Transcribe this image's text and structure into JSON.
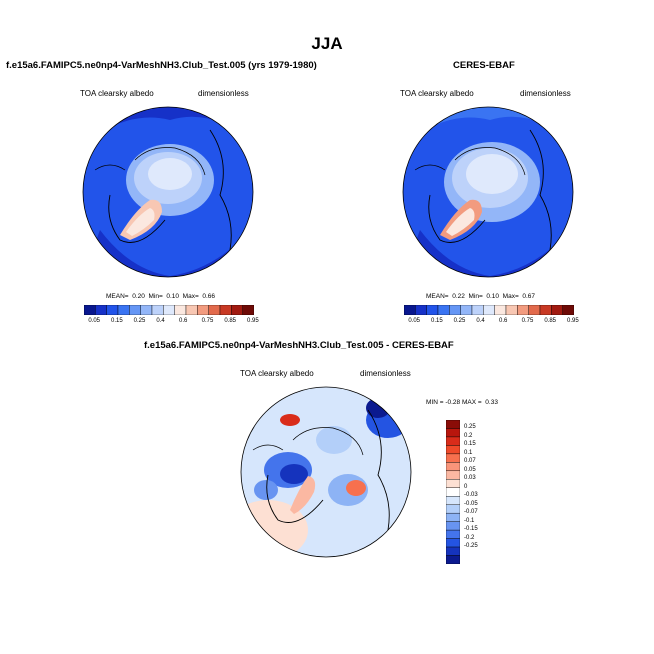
{
  "title": "JJA",
  "panels": [
    {
      "name": "model",
      "title": "f.e15a6.FAMIPC5.ne0np4-VarMeshNH3.Club_Test.005 (yrs 1979-1980)",
      "variable": "TOA clearsky albedo",
      "units": "dimensionless",
      "stats": {
        "mean_label": "MEAN=",
        "mean": "0.20",
        "min_label": "Min=",
        "min": "0.10",
        "max_label": "Max=",
        "max": "0.66"
      }
    },
    {
      "name": "obs",
      "title": "CERES-EBAF",
      "variable": "TOA clearsky albedo",
      "units": "dimensionless",
      "stats": {
        "mean_label": "MEAN=",
        "mean": "0.22",
        "min_label": "Min=",
        "min": "0.10",
        "max_label": "Max=",
        "max": "0.67"
      }
    },
    {
      "name": "diff",
      "title": "f.e15a6.FAMIPC5.ne0np4-VarMeshNH3.Club_Test.005 - CERES-EBAF",
      "variable": "TOA clearsky albedo",
      "units": "dimensionless",
      "stats": {
        "min_label": "MIN =",
        "min": "-0.28",
        "max_label": "MAX =",
        "max": "0.33"
      }
    }
  ],
  "colorbar_abs": {
    "labels": [
      "0.05",
      "0.15",
      "0.25",
      "0.4",
      "0.6",
      "0.75",
      "0.85",
      "0.95"
    ],
    "colors": [
      "#08178f",
      "#1631c8",
      "#2254ea",
      "#3a74f2",
      "#6596f5",
      "#93b6f8",
      "#bdd2fa",
      "#dfe9fc",
      "#fbe8e0",
      "#f8c7b3",
      "#f29b7f",
      "#e26a4c",
      "#c83924",
      "#a11a10",
      "#6e0a06"
    ]
  },
  "colorbar_diff": {
    "labels": [
      "0.25",
      "0.2",
      "0.15",
      "0.1",
      "0.07",
      "0.05",
      "0.03",
      "0",
      "-0.03",
      "-0.05",
      "-0.07",
      "-0.1",
      "-0.15",
      "-0.2",
      "-0.25"
    ],
    "colors": [
      "#8a0c07",
      "#b8160d",
      "#d92c1a",
      "#ef4a2a",
      "#f7704e",
      "#f9957a",
      "#fbb8a2",
      "#fde0d3",
      "#ffffff",
      "#d6e6fc",
      "#b3cff9",
      "#8db3f5",
      "#6894f1",
      "#4474ec",
      "#2454e2",
      "#1533bd",
      "#0b1a8f"
    ]
  }
}
